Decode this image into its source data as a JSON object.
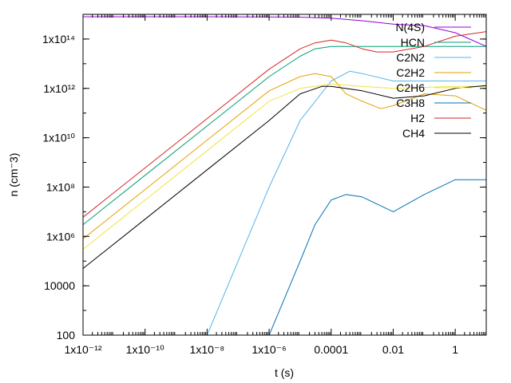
{
  "chart_data": {
    "type": "line",
    "title": "",
    "xlabel": "t (s)",
    "ylabel": "n (cm⁻3)",
    "x_scale": "log",
    "y_scale": "log",
    "xlim": [
      1e-12,
      10
    ],
    "ylim": [
      100,
      1000000000000000.0
    ],
    "grid": false,
    "legend_position": "top-right",
    "x_ticks": [
      {
        "value": 1e-12,
        "label": "1x10⁻¹²"
      },
      {
        "value": 1e-10,
        "label": "1x10⁻¹⁰"
      },
      {
        "value": 1e-08,
        "label": "1x10⁻⁸"
      },
      {
        "value": 1e-06,
        "label": "1x10⁻⁶"
      },
      {
        "value": 0.0001,
        "label": "0.0001"
      },
      {
        "value": 0.01,
        "label": "0.01"
      },
      {
        "value": 1,
        "label": "1"
      }
    ],
    "y_ticks": [
      {
        "value": 100,
        "label": "100"
      },
      {
        "value": 10000.0,
        "label": "10000"
      },
      {
        "value": 1000000.0,
        "label": "1x10⁶"
      },
      {
        "value": 100000000.0,
        "label": "1x10⁸"
      },
      {
        "value": 10000000000.0,
        "label": "1x10¹⁰"
      },
      {
        "value": 1000000000000.0,
        "label": "1x10¹²"
      },
      {
        "value": 100000000000000.0,
        "label": "1x10¹⁴"
      }
    ],
    "series": [
      {
        "name": "N(4S)",
        "color": "#9400d3",
        "x": [
          1e-12,
          1e-08,
          1e-06,
          1e-05,
          0.0001,
          0.001,
          0.01,
          0.1,
          1,
          10
        ],
        "y": [
          800000000000000.0,
          800000000000000.0,
          790000000000000.0,
          770000000000000.0,
          700000000000000.0,
          550000000000000.0,
          400000000000000.0,
          350000000000000.0,
          180000000000000.0,
          50000000000000.0
        ]
      },
      {
        "name": "HCN",
        "color": "#009e73",
        "x": [
          1e-12,
          1e-10,
          1e-08,
          1e-06,
          1e-05,
          3e-05,
          0.0001,
          0.001,
          0.01,
          0.1,
          1,
          10
        ],
        "y": [
          3000000.0,
          300000000.0,
          30000000000.0,
          3000000000000.0,
          20000000000000.0,
          40000000000000.0,
          50000000000000.0,
          50000000000000.0,
          50000000000000.0,
          50000000000000.0,
          50000000000000.0,
          50000000000000.0
        ]
      },
      {
        "name": "C2N2",
        "color": "#56b4e9",
        "x": [
          1e-08,
          1e-07,
          1e-06,
          1e-05,
          0.0001,
          0.0004,
          0.001,
          0.01,
          0.1,
          1,
          10
        ],
        "y": [
          100,
          100000.0,
          100000000.0,
          50000000000.0,
          2000000000000.0,
          5000000000000.0,
          4000000000000.0,
          2000000000000.0,
          2000000000000.0,
          2000000000000.0,
          2000000000000.0
        ]
      },
      {
        "name": "C2H2",
        "color": "#e69f00",
        "x": [
          1e-12,
          1e-10,
          1e-08,
          1e-06,
          1e-05,
          3e-05,
          0.0001,
          0.0003,
          0.001,
          0.004,
          0.01,
          0.1,
          1,
          10
        ],
        "y": [
          800000.0,
          80000000.0,
          8000000000.0,
          800000000000.0,
          3000000000000.0,
          4000000000000.0,
          3000000000000.0,
          600000000000.0,
          300000000000.0,
          150000000000.0,
          200000000000.0,
          600000000000.0,
          500000000000.0,
          130000000000.0
        ]
      },
      {
        "name": "C2H6",
        "color": "#f0e442",
        "x": [
          1e-12,
          1e-10,
          1e-08,
          1e-06,
          1e-05,
          0.0001,
          0.001,
          0.01,
          0.1,
          1,
          10
        ],
        "y": [
          300000.0,
          30000000.0,
          3000000000.0,
          300000000000.0,
          1000000000000.0,
          1500000000000.0,
          1200000000000.0,
          1000000000000.0,
          1100000000000.0,
          1200000000000.0,
          1200000000000.0
        ]
      },
      {
        "name": "C3H8",
        "color": "#0072b2",
        "x": [
          1e-06,
          1e-05,
          3e-05,
          0.0001,
          0.0003,
          0.001,
          0.01,
          0.1,
          1,
          10
        ],
        "y": [
          100,
          100000.0,
          3000000.0,
          30000000.0,
          50000000.0,
          40000000.0,
          10000000.0,
          50000000.0,
          200000000.0,
          200000000.0
        ]
      },
      {
        "name": "H2",
        "color": "#d62728",
        "x": [
          1e-12,
          1e-10,
          1e-08,
          1e-06,
          1e-05,
          3e-05,
          0.0001,
          0.0003,
          0.001,
          0.003,
          0.01,
          0.1,
          1,
          10
        ],
        "y": [
          6000000.0,
          600000000.0,
          60000000000.0,
          6000000000000.0,
          40000000000000.0,
          70000000000000.0,
          90000000000000.0,
          70000000000000.0,
          40000000000000.0,
          30000000000000.0,
          30000000000000.0,
          50000000000000.0,
          130000000000000.0,
          200000000000000.0
        ]
      },
      {
        "name": "CH4",
        "color": "#000000",
        "x": [
          1e-12,
          1e-10,
          1e-08,
          1e-06,
          1e-05,
          5e-05,
          0.0001,
          0.001,
          0.01,
          0.1,
          1,
          10
        ],
        "y": [
          50000.0,
          5000000.0,
          500000000.0,
          50000000000.0,
          600000000000.0,
          1200000000000.0,
          1200000000000.0,
          800000000000.0,
          400000000000.0,
          500000000000.0,
          1000000000000.0,
          1300000000000.0
        ]
      }
    ]
  }
}
